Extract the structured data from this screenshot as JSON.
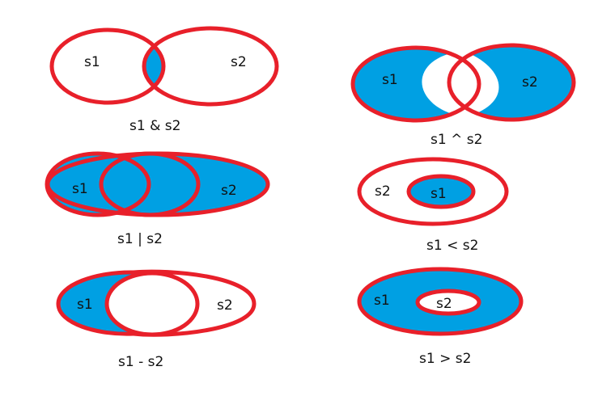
{
  "colors": {
    "fill": "#00a0e3",
    "outline": "#e8202a",
    "background": "#ffffff"
  },
  "diagrams": {
    "intersection": {
      "set_a": "s1",
      "set_b": "s2",
      "caption": "s1 & s2"
    },
    "sym_difference": {
      "set_a": "s1",
      "set_b": "s2",
      "caption": "s1 ^ s2"
    },
    "union": {
      "set_a": "s1",
      "set_b": "s2",
      "caption": "s1 | s2"
    },
    "subset": {
      "inner": "s1",
      "outer": "s2",
      "caption": "s1 < s2"
    },
    "difference": {
      "set_a": "s1",
      "set_b": "s2",
      "caption": "s1 - s2"
    },
    "superset": {
      "outer": "s1",
      "inner": "s2",
      "caption": "s1 > s2"
    }
  }
}
